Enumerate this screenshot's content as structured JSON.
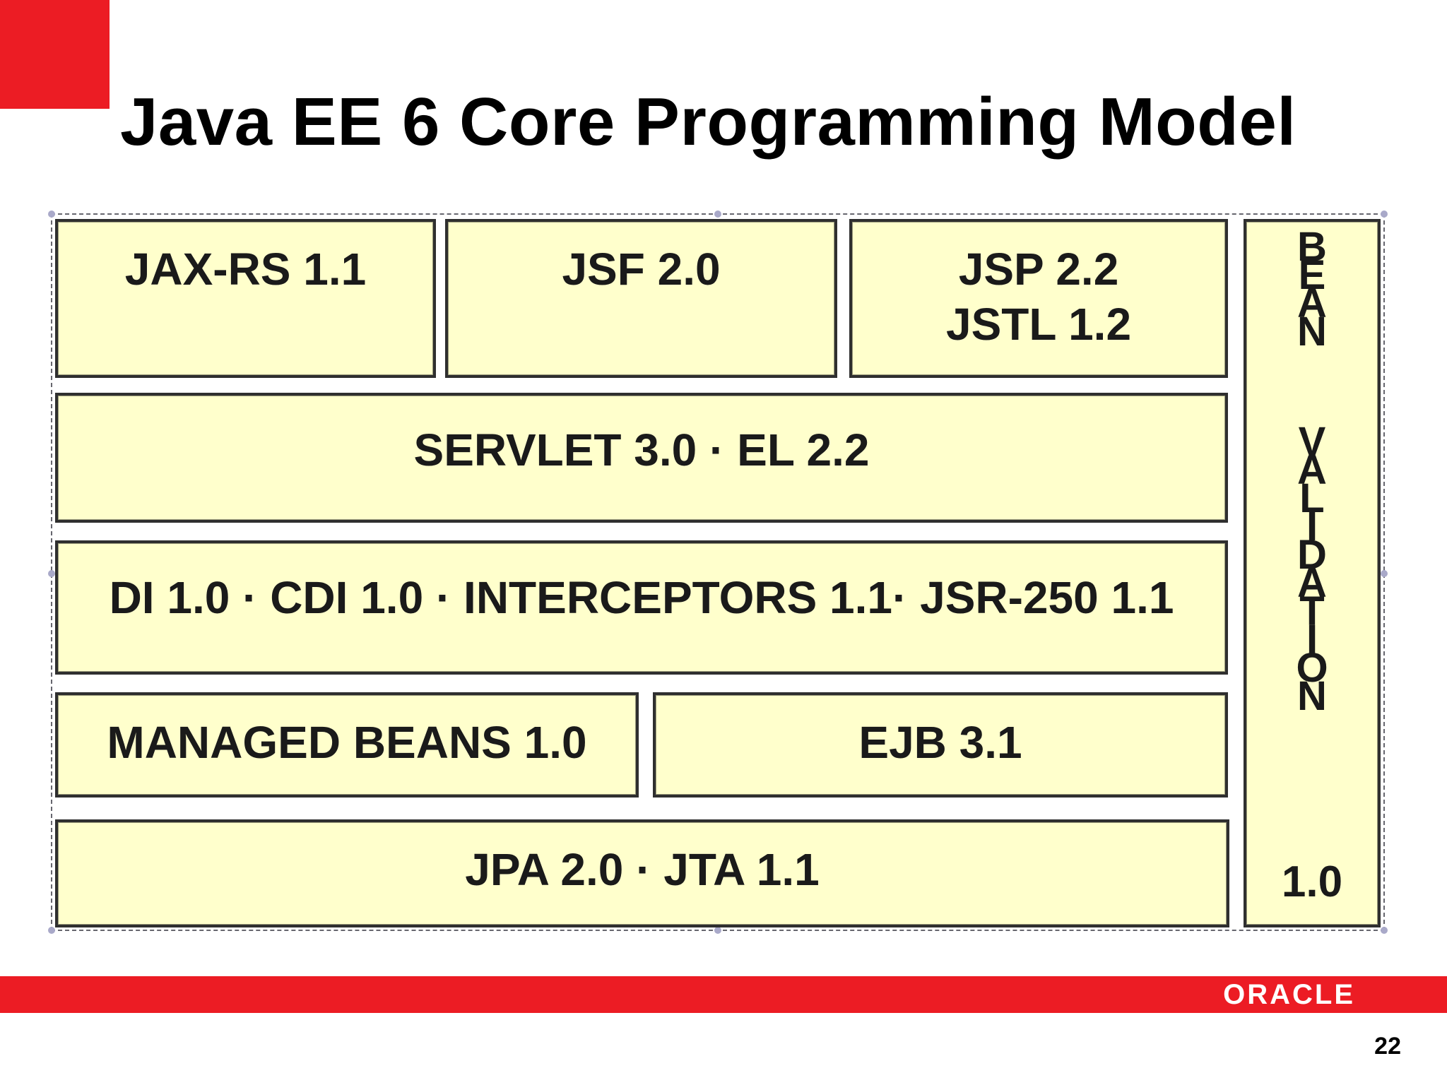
{
  "slide": {
    "title": "Java EE 6 Core Programming Model",
    "page_number": "22",
    "footer_logo": "ORACLE"
  },
  "colors": {
    "brand_red": "#ec1c24",
    "box_fill": "#ffffcc",
    "box_border": "#2f2f2f"
  },
  "diagram": {
    "jaxrs": "JAX-RS 1.1",
    "jsf": "JSF 2.0",
    "jsp": "JSP 2.2",
    "jstl": "JSTL 1.2",
    "servlet": "SERVLET 3.0 · EL 2.2",
    "di": "DI 1.0 · CDI 1.0 · INTERCEPTORS 1.1· JSR-250 1.1",
    "managed_beans": "MANAGED BEANS 1.0",
    "ejb": "EJB 3.1",
    "jpa": "JPA 2.0 · JTA 1.1",
    "bean_validation": {
      "word1": [
        "B",
        "E",
        "A",
        "N"
      ],
      "word2": [
        "V",
        "A",
        "L",
        "I",
        "D",
        "A",
        "T",
        "I",
        "O",
        "N"
      ],
      "version": "1.0"
    }
  }
}
